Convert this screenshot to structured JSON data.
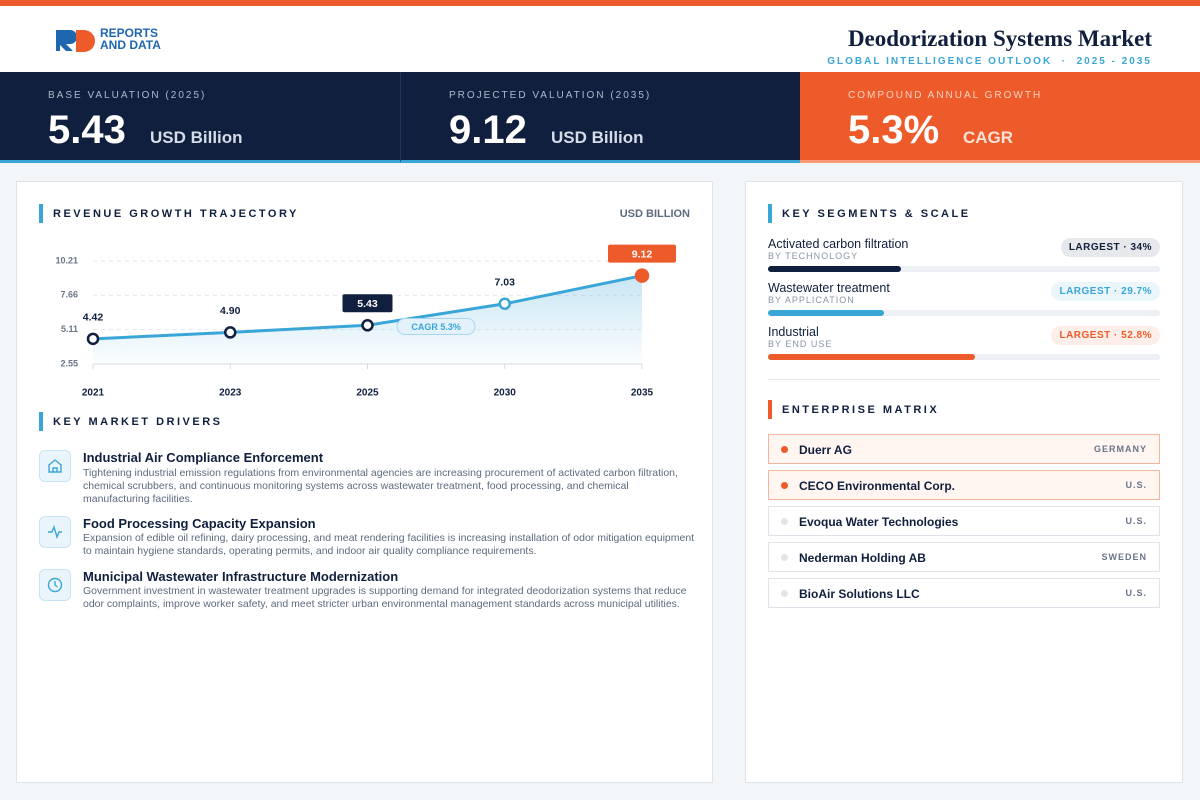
{
  "header": {
    "logo": [
      "REPORTS",
      "AND DATA"
    ],
    "title": "Deodorization Systems Market",
    "subtitle": "GLOBAL INTELLIGENCE OUTLOOK  ·  2025 - 2035"
  },
  "kpis": [
    {
      "label": "BASE VALUATION (2025)",
      "value": 5.43,
      "unit": "USD Billion"
    },
    {
      "label": "PROJECTED VALUATION (2035)",
      "value": 9.12,
      "unit": "USD Billion"
    },
    {
      "label": "COMPOUND ANNUAL GROWTH",
      "value": "5.3%",
      "unit": "CAGR"
    }
  ],
  "chart_data": {
    "type": "line",
    "title": "REVENUE GROWTH TRAJECTORY",
    "unit_label": "USD BILLION",
    "categories": [
      "2021",
      "2023",
      "2025",
      "2030",
      "2035"
    ],
    "values": [
      4.42,
      4.9,
      5.43,
      7.03,
      9.12
    ],
    "value_labels": [
      "4.42",
      "4.90",
      "5.43",
      "7.03",
      "9.12"
    ],
    "color": "#3aa6d8",
    "ylim": [
      2.55,
      10.21
    ],
    "yticks": [
      2.55,
      5.11,
      7.66,
      10.21
    ],
    "grid": true,
    "annotation": "CAGR 5.3%"
  },
  "drivers": {
    "title": "KEY MARKET DRIVERS",
    "items": [
      {
        "title": "Industrial Air Compliance Enforcement",
        "text": "Tightening industrial emission regulations from environmental agencies are increasing procurement of activated carbon filtration, chemical scrubbers, and continuous monitoring systems across wastewater treatment, food processing, and chemical manufacturing facilities."
      },
      {
        "title": "Food Processing Capacity Expansion",
        "text": "Expansion of edible oil refining, dairy processing, and meat rendering facilities is increasing installation of odor mitigation equipment to maintain hygiene standards, operating permits, and indoor air quality compliance requirements."
      },
      {
        "title": "Municipal Wastewater Infrastructure Modernization",
        "text": "Government investment in wastewater treatment upgrades is supporting demand for integrated deodorization systems that reduce odor complaints, improve worker safety, and meet stricter urban environmental management standards across municipal utilities."
      }
    ]
  },
  "segments": {
    "title": "KEY SEGMENTS & SCALE",
    "items": [
      {
        "name": "Activated carbon filtration",
        "category": "BY TECHNOLOGY",
        "value": 34,
        "value_label": "LARGEST · 34%",
        "color": "#0f1f3d"
      },
      {
        "name": "Wastewater treatment",
        "category": "BY APPLICATION",
        "value": 29.7,
        "value_label": "LARGEST · 29.7%",
        "color": "#3aa6d8"
      },
      {
        "name": "Industrial",
        "category": "BY END USE",
        "value": 52.8,
        "value_label": "LARGEST · 52.8%",
        "color": "#ee5b2b"
      }
    ]
  },
  "matrix": {
    "title": "ENTERPRISE MATRIX",
    "rows": [
      {
        "name": "Duerr AG",
        "country": "GERMANY",
        "highlighted": true
      },
      {
        "name": "CECO Environmental Corp.",
        "country": "U.S.",
        "highlighted": true
      },
      {
        "name": "Evoqua Water Technologies",
        "country": "U.S.",
        "highlighted": false
      },
      {
        "name": "Nederman Holding AB",
        "country": "SWEDEN",
        "highlighted": false
      },
      {
        "name": "BioAir Solutions LLC",
        "country": "U.S.",
        "highlighted": false
      }
    ]
  }
}
